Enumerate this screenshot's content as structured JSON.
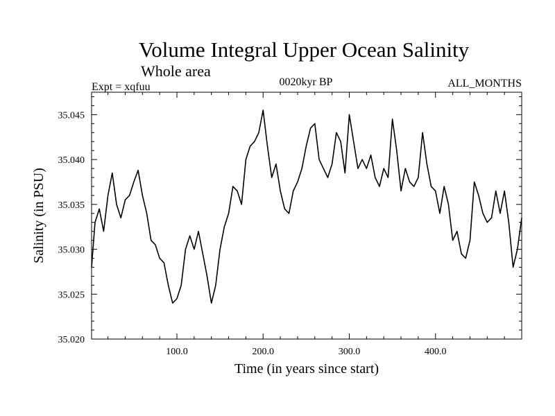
{
  "chart_data": {
    "type": "line",
    "title": "Volume Integral Upper Ocean Salinity",
    "subtitle": "Whole area",
    "expt_label": "Expt = xqfuu",
    "period_label": "0020kyr BP",
    "months_label": "ALL_MONTHS",
    "xlabel": "Time (in years since start)",
    "ylabel": "Salinity (in PSU)",
    "xlim": [
      1,
      500
    ],
    "ylim": [
      35.02,
      35.0475
    ],
    "x_ticks": [
      100,
      200,
      300,
      400
    ],
    "x_tick_labels": [
      "100.0",
      "200.0",
      "300.0",
      "400.0"
    ],
    "y_ticks": [
      35.02,
      35.025,
      35.03,
      35.035,
      35.04,
      35.045
    ],
    "y_tick_labels": [
      "35.020",
      "35.025",
      "35.030",
      "35.035",
      "35.040",
      "35.045"
    ],
    "grid": false,
    "series": [
      {
        "name": "Salinity",
        "x": [
          1,
          5,
          10,
          15,
          20,
          25,
          30,
          35,
          40,
          45,
          50,
          55,
          60,
          65,
          70,
          75,
          80,
          85,
          90,
          95,
          100,
          105,
          110,
          115,
          120,
          125,
          130,
          135,
          140,
          145,
          150,
          155,
          160,
          165,
          170,
          175,
          180,
          185,
          190,
          195,
          200,
          205,
          210,
          215,
          220,
          225,
          230,
          235,
          240,
          245,
          250,
          255,
          260,
          265,
          270,
          275,
          280,
          285,
          290,
          295,
          300,
          305,
          310,
          315,
          320,
          325,
          330,
          335,
          340,
          345,
          350,
          355,
          360,
          365,
          370,
          375,
          380,
          385,
          390,
          395,
          400,
          405,
          410,
          415,
          420,
          425,
          430,
          435,
          440,
          445,
          450,
          455,
          460,
          465,
          470,
          475,
          480,
          485,
          490,
          495,
          500
        ],
        "values": [
          35.028,
          35.033,
          35.0345,
          35.032,
          35.036,
          35.0385,
          35.035,
          35.0335,
          35.0355,
          35.036,
          35.0375,
          35.0388,
          35.036,
          35.034,
          35.031,
          35.0305,
          35.029,
          35.0285,
          35.026,
          35.024,
          35.0245,
          35.026,
          35.03,
          35.0315,
          35.03,
          35.032,
          35.0295,
          35.027,
          35.024,
          35.026,
          35.03,
          35.0325,
          35.034,
          35.037,
          35.0365,
          35.035,
          35.04,
          35.0415,
          35.042,
          35.043,
          35.0455,
          35.0415,
          35.038,
          35.0395,
          35.0365,
          35.0345,
          35.034,
          35.0365,
          35.0375,
          35.039,
          35.0415,
          35.0435,
          35.044,
          35.04,
          35.039,
          35.038,
          35.0395,
          35.043,
          35.042,
          35.0385,
          35.045,
          35.042,
          35.039,
          35.04,
          35.039,
          35.0405,
          35.038,
          35.037,
          35.039,
          35.038,
          35.0445,
          35.041,
          35.0365,
          35.039,
          35.0375,
          35.037,
          35.038,
          35.043,
          35.0395,
          35.037,
          35.0365,
          35.034,
          35.037,
          35.035,
          35.031,
          35.032,
          35.0295,
          35.029,
          35.031,
          35.0375,
          35.036,
          35.034,
          35.033,
          35.0335,
          35.0365,
          35.034,
          35.0365,
          35.033,
          35.028,
          35.03,
          35.0335
        ]
      }
    ]
  }
}
